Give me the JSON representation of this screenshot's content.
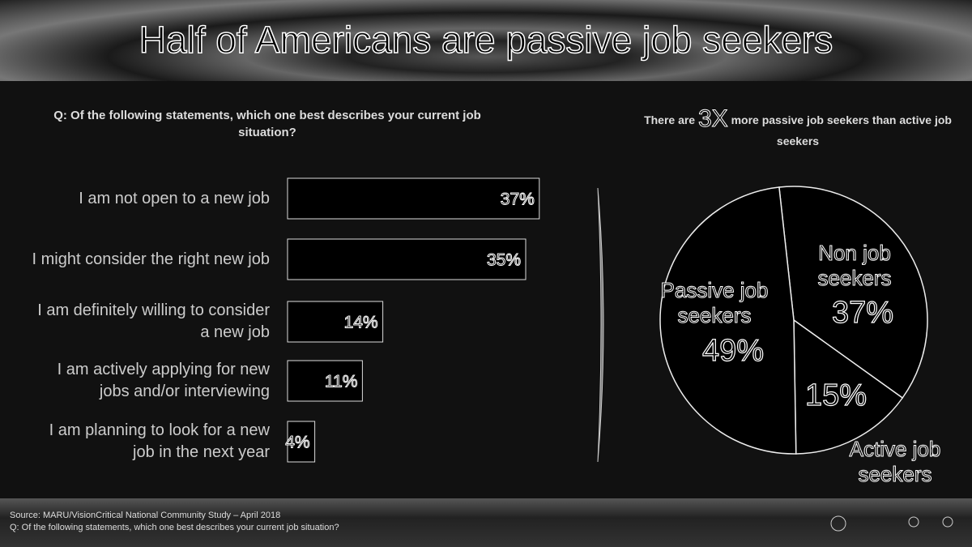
{
  "title": "Half of Americans are passive job seekers",
  "chart_data": [
    {
      "type": "hbar",
      "title": "Q: Of the following statements, which one best describes your current job situation?",
      "categories": [
        "I am not open to a new job",
        "I might consider the right new job",
        "I am definitely willing to consider a new job",
        "I am actively applying for new jobs and/or interviewing",
        "I am planning to look for a new job in the next year"
      ],
      "values": [
        37,
        35,
        14,
        11,
        4
      ],
      "value_labels": [
        "37%",
        "35%",
        "14%",
        "11%",
        "4%"
      ],
      "color": "#000000"
    },
    {
      "type": "pie",
      "subtitle_before": "There are",
      "subtitle_emphasis": "3X",
      "subtitle_after": "more passive job seekers than active job seekers",
      "categories": [
        "Non job seekers",
        "Active job seekers",
        "Passive job seekers"
      ],
      "values": [
        37,
        15,
        49
      ],
      "value_labels": [
        "37%",
        "15%",
        "49%"
      ],
      "color": "#000000"
    }
  ],
  "footer": {
    "source": "Source: MARU/VisionCritical National Community Study – April 2018",
    "question": "Q: Of the following statements, which one best describes your current job situation?"
  }
}
